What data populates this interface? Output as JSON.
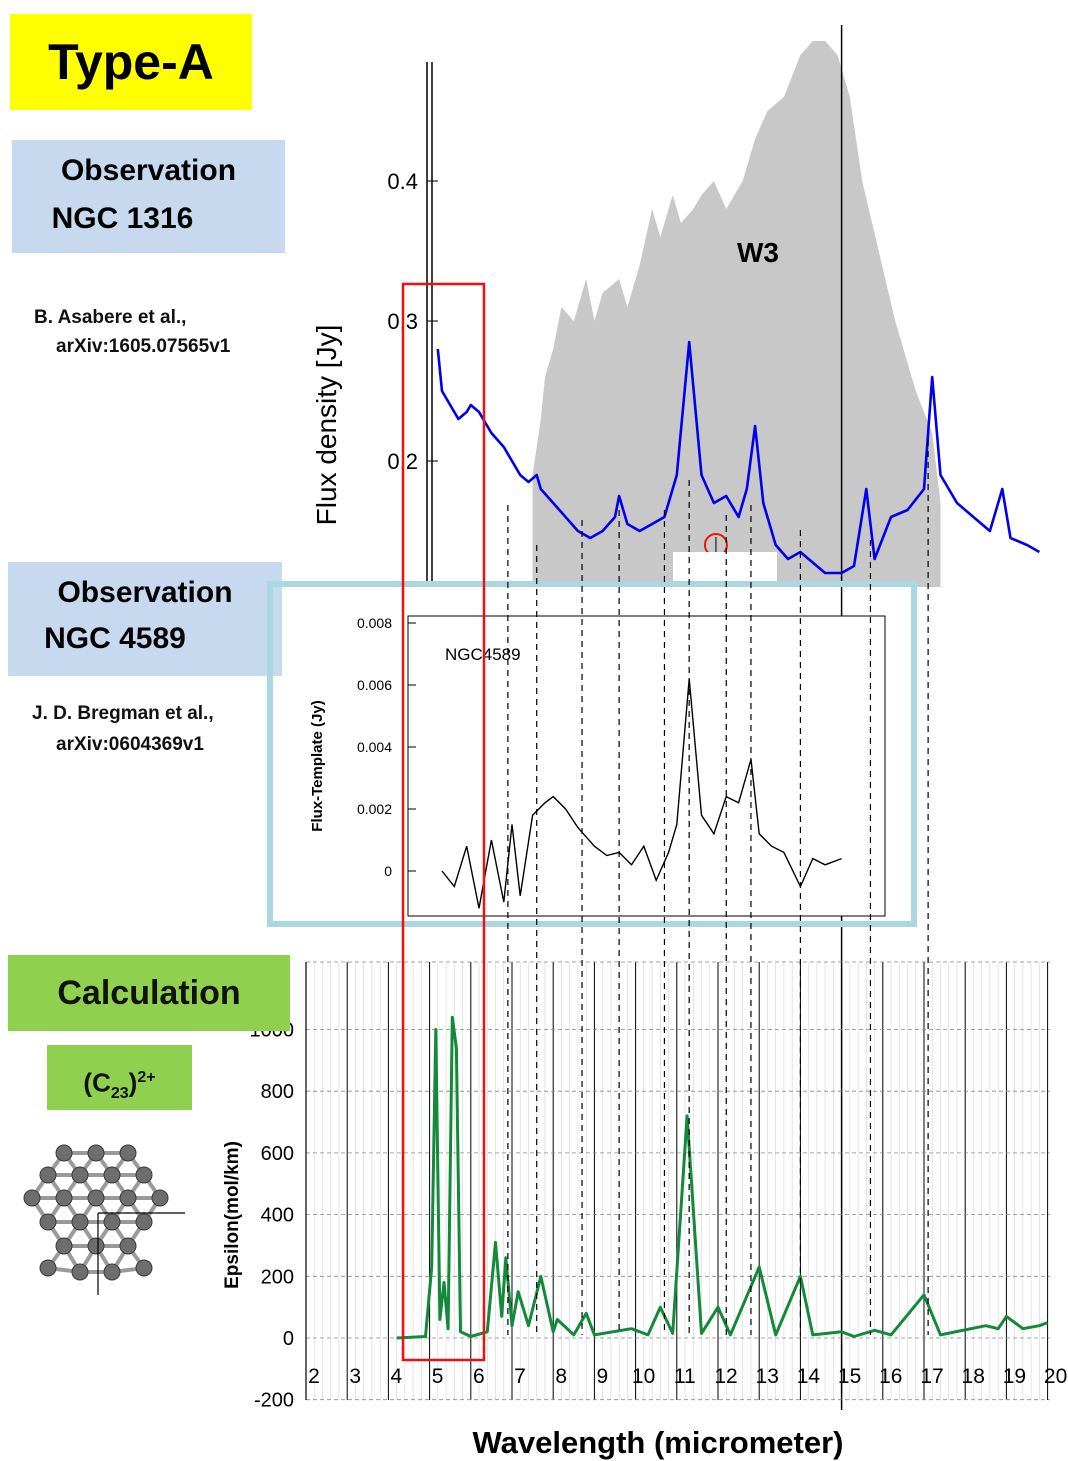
{
  "title": "Type-A",
  "panels": {
    "obs1": {
      "line1": "Observation",
      "line2": "NGC 1316",
      "ref1": "B. Asabere et al.,",
      "ref2": "arXiv:1605.07565v1"
    },
    "obs2": {
      "line1": "Observation",
      "line2": "NGC 4589",
      "ref1": "J. D. Bregman et al.,",
      "ref2": "arXiv:0604369v1"
    },
    "calc": {
      "label": "Calculation",
      "molecule_base": "(C",
      "molecule_sub": "23",
      "molecule_close": ")",
      "molecule_sup": "2+"
    }
  },
  "colors": {
    "flux_line": "#0000ee",
    "band_fill": "#c8c8c8",
    "template_line": "#000000",
    "calc_line": "#138a3a",
    "highlight_box": "#ee1111",
    "panel_border": "#a9d8e2",
    "marker": "#ee1111"
  },
  "chart_data": [
    {
      "type": "line",
      "ylabel": "Flux density [Jy]",
      "yticks": [
        "0.2",
        "0.3",
        "0.4"
      ],
      "band_label": "W3",
      "series": [
        {
          "values": [
            [
              5.2,
              0.28
            ],
            [
              5.3,
              0.25
            ],
            [
              5.5,
              0.24
            ],
            [
              5.7,
              0.23
            ],
            [
              5.9,
              0.235
            ],
            [
              6.0,
              0.24
            ],
            [
              6.2,
              0.235
            ],
            [
              6.5,
              0.22
            ],
            [
              6.8,
              0.21
            ],
            [
              7.0,
              0.2
            ],
            [
              7.2,
              0.19
            ],
            [
              7.4,
              0.185
            ],
            [
              7.6,
              0.19
            ],
            [
              7.7,
              0.18
            ],
            [
              8.0,
              0.17
            ],
            [
              8.3,
              0.16
            ],
            [
              8.6,
              0.15
            ],
            [
              8.9,
              0.145
            ],
            [
              9.2,
              0.15
            ],
            [
              9.5,
              0.16
            ],
            [
              9.6,
              0.175
            ],
            [
              9.8,
              0.155
            ],
            [
              10.1,
              0.15
            ],
            [
              10.4,
              0.155
            ],
            [
              10.7,
              0.16
            ],
            [
              11.0,
              0.19
            ],
            [
              11.3,
              0.285
            ],
            [
              11.6,
              0.19
            ],
            [
              11.9,
              0.17
            ],
            [
              12.2,
              0.175
            ],
            [
              12.5,
              0.16
            ],
            [
              12.7,
              0.18
            ],
            [
              12.9,
              0.225
            ],
            [
              13.1,
              0.17
            ],
            [
              13.4,
              0.14
            ],
            [
              13.7,
              0.13
            ],
            [
              14.0,
              0.135
            ],
            [
              14.2,
              0.13
            ],
            [
              14.6,
              0.12
            ],
            [
              15.0,
              0.12
            ],
            [
              15.3,
              0.125
            ],
            [
              15.6,
              0.18
            ],
            [
              15.8,
              0.13
            ],
            [
              16.2,
              0.16
            ],
            [
              16.6,
              0.165
            ],
            [
              17.0,
              0.18
            ],
            [
              17.2,
              0.26
            ],
            [
              17.4,
              0.19
            ],
            [
              17.8,
              0.17
            ],
            [
              18.2,
              0.16
            ],
            [
              18.6,
              0.15
            ],
            [
              18.9,
              0.18
            ],
            [
              19.1,
              0.145
            ],
            [
              19.5,
              0.14
            ],
            [
              19.8,
              0.135
            ]
          ]
        }
      ],
      "marker_point": [
        11.95,
        0.14
      ]
    },
    {
      "type": "line",
      "title": "NGC4589",
      "ylabel": "Flux-Template (Jy)",
      "yticks": [
        "0",
        "0.002",
        "0.004",
        "0.006",
        "0.008"
      ],
      "series": [
        {
          "values": [
            [
              5.3,
              0.0
            ],
            [
              5.6,
              -0.0005
            ],
            [
              5.9,
              0.0008
            ],
            [
              6.2,
              -0.0012
            ],
            [
              6.5,
              0.001
            ],
            [
              6.8,
              -0.001
            ],
            [
              7.0,
              0.0015
            ],
            [
              7.2,
              -0.0008
            ],
            [
              7.5,
              0.0018
            ],
            [
              7.8,
              0.0022
            ],
            [
              8.0,
              0.0024
            ],
            [
              8.3,
              0.002
            ],
            [
              8.6,
              0.0014
            ],
            [
              9.0,
              0.0008
            ],
            [
              9.3,
              0.0005
            ],
            [
              9.6,
              0.0006
            ],
            [
              9.9,
              0.0002
            ],
            [
              10.2,
              0.0008
            ],
            [
              10.5,
              -0.0003
            ],
            [
              10.8,
              0.0006
            ],
            [
              11.0,
              0.0015
            ],
            [
              11.3,
              0.0062
            ],
            [
              11.6,
              0.0018
            ],
            [
              11.9,
              0.0012
            ],
            [
              12.2,
              0.0024
            ],
            [
              12.5,
              0.0022
            ],
            [
              12.8,
              0.0036
            ],
            [
              13.0,
              0.0012
            ],
            [
              13.3,
              0.0008
            ],
            [
              13.6,
              0.0006
            ],
            [
              14.0,
              -0.0005
            ],
            [
              14.3,
              0.0004
            ],
            [
              14.6,
              0.0002
            ],
            [
              15.0,
              0.0004
            ]
          ]
        }
      ]
    },
    {
      "type": "line",
      "xlabel": "Wavelength (micrometer)",
      "ylabel": "Epsilon(mol/km)",
      "x": [
        2,
        3,
        4,
        5,
        6,
        7,
        8,
        9,
        10,
        11,
        12,
        13,
        14,
        15,
        16,
        17,
        18,
        19,
        20
      ],
      "yticks": [
        "-200",
        "0",
        "200",
        "400",
        "600",
        "800",
        "1000"
      ],
      "series": [
        {
          "values": [
            [
              4.2,
              0
            ],
            [
              4.9,
              5
            ],
            [
              5.05,
              230
            ],
            [
              5.15,
              1000
            ],
            [
              5.25,
              60
            ],
            [
              5.35,
              180
            ],
            [
              5.45,
              30
            ],
            [
              5.55,
              1040
            ],
            [
              5.65,
              940
            ],
            [
              5.75,
              20
            ],
            [
              6.0,
              5
            ],
            [
              6.4,
              20
            ],
            [
              6.6,
              310
            ],
            [
              6.75,
              70
            ],
            [
              6.85,
              260
            ],
            [
              7.0,
              40
            ],
            [
              7.15,
              150
            ],
            [
              7.4,
              40
            ],
            [
              7.7,
              200
            ],
            [
              8.0,
              20
            ],
            [
              8.1,
              60
            ],
            [
              8.5,
              10
            ],
            [
              8.8,
              80
            ],
            [
              9.0,
              10
            ],
            [
              9.9,
              30
            ],
            [
              10.3,
              10
            ],
            [
              10.6,
              100
            ],
            [
              10.9,
              15
            ],
            [
              11.25,
              720
            ],
            [
              11.6,
              15
            ],
            [
              12.0,
              100
            ],
            [
              12.3,
              10
            ],
            [
              13.0,
              230
            ],
            [
              13.4,
              10
            ],
            [
              14.0,
              200
            ],
            [
              14.3,
              10
            ],
            [
              15.0,
              20
            ],
            [
              15.3,
              5
            ],
            [
              15.8,
              25
            ],
            [
              16.2,
              10
            ],
            [
              17.0,
              140
            ],
            [
              17.4,
              10
            ],
            [
              18.5,
              40
            ],
            [
              18.8,
              30
            ],
            [
              19.0,
              70
            ],
            [
              19.4,
              30
            ],
            [
              19.8,
              40
            ],
            [
              20.0,
              50
            ]
          ]
        }
      ]
    }
  ]
}
